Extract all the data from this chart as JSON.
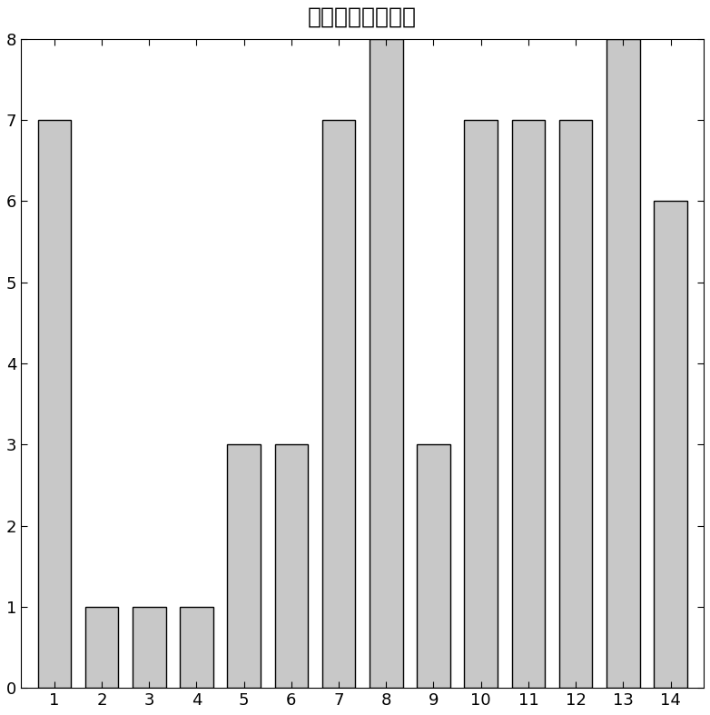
{
  "title": "时间特性分类结果",
  "categories": [
    1,
    2,
    3,
    4,
    5,
    6,
    7,
    8,
    9,
    10,
    11,
    12,
    13,
    14
  ],
  "values": [
    7,
    1,
    1,
    1,
    3,
    3,
    7,
    8,
    3,
    7,
    7,
    7,
    8,
    6
  ],
  "bar_color": "#c8c8c8",
  "bar_edge_color": "#000000",
  "bar_edge_width": 1.0,
  "ylim": [
    0,
    8
  ],
  "yticks": [
    0,
    1,
    2,
    3,
    4,
    5,
    6,
    7,
    8
  ],
  "xticks": [
    1,
    2,
    3,
    4,
    5,
    6,
    7,
    8,
    9,
    10,
    11,
    12,
    13,
    14
  ],
  "title_fontsize": 18,
  "tick_fontsize": 13,
  "background_color": "#ffffff",
  "bar_width": 0.7,
  "xlim": [
    0.3,
    14.7
  ]
}
